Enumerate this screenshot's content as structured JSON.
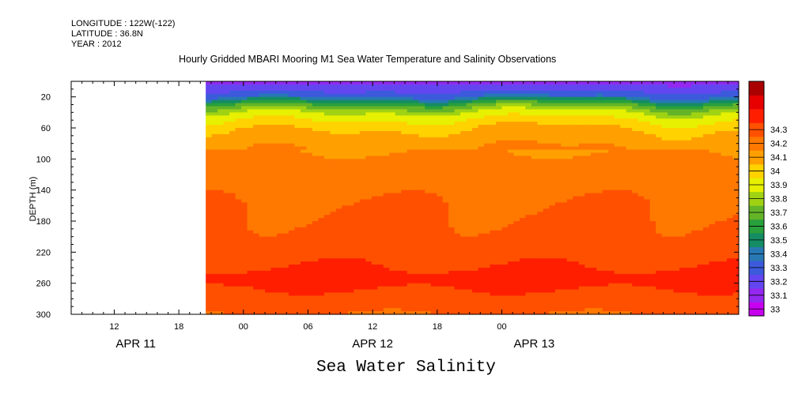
{
  "header": {
    "longitude": "LONGITUDE : 122W(-122)",
    "latitude": "LATITUDE : 36.8N",
    "year": "YEAR : 2012"
  },
  "chart_data": {
    "type": "heatmap",
    "title": "Hourly Gridded MBARI Mooring M1 Sea Water Temperature and Salinity Observations",
    "xlabel": "",
    "ylabel": "DEPTH (m)",
    "bottom_label": "Sea Water Salinity",
    "y_axis": {
      "inverted": true,
      "range": [
        0,
        300
      ],
      "ticks": [
        20,
        60,
        100,
        140,
        180,
        220,
        260,
        300
      ]
    },
    "x_axis": {
      "range_hours": [
        0,
        62
      ],
      "tick_labels": [
        {
          "hour": 4,
          "label": "12"
        },
        {
          "hour": 10,
          "label": "18"
        },
        {
          "hour": 16,
          "label": "00"
        },
        {
          "hour": 22,
          "label": "06"
        },
        {
          "hour": 28,
          "label": "12"
        },
        {
          "hour": 34,
          "label": "18"
        },
        {
          "hour": 40,
          "label": "00"
        }
      ],
      "date_labels": [
        {
          "hour": 6,
          "label": "APR 11"
        },
        {
          "hour": 28,
          "label": "APR 12"
        },
        {
          "hour": 43,
          "label": "APR 13"
        }
      ],
      "data_start_hour": 12.5
    },
    "colorbar": {
      "levels": [
        "33",
        "33.1",
        "33.2",
        "33.3",
        "33.4",
        "33.5",
        "33.6",
        "33.7",
        "33.8",
        "33.9",
        "34",
        "34.1",
        "34.2",
        "34.3"
      ],
      "colors": [
        "#c800f0",
        "#9428f0",
        "#6446f0",
        "#3c5adc",
        "#2878b4",
        "#148c64",
        "#28a03c",
        "#64b428",
        "#a0d214",
        "#e6f000",
        "#ffd200",
        "#ffa000",
        "#ff7800",
        "#ff5000",
        "#ff1e00",
        "#e60000",
        "#aa0000"
      ]
    },
    "depth_profile": [
      {
        "depth": 0,
        "value": 33.05
      },
      {
        "depth": 10,
        "value": 33.15
      },
      {
        "depth": 20,
        "value": 33.3
      },
      {
        "depth": 30,
        "value": 33.6
      },
      {
        "depth": 40,
        "value": 33.8
      },
      {
        "depth": 55,
        "value": 33.95
      },
      {
        "depth": 70,
        "value": 34.05
      },
      {
        "depth": 90,
        "value": 34.1
      },
      {
        "depth": 115,
        "value": 34.15
      },
      {
        "depth": 140,
        "value": 34.18
      },
      {
        "depth": 160,
        "value": 34.2
      },
      {
        "depth": 200,
        "value": 34.22
      },
      {
        "depth": 220,
        "value": 34.27
      },
      {
        "depth": 240,
        "value": 34.3
      },
      {
        "depth": 255,
        "value": 34.34
      },
      {
        "depth": 275,
        "value": 34.28
      },
      {
        "depth": 300,
        "value": 34.2
      }
    ]
  }
}
